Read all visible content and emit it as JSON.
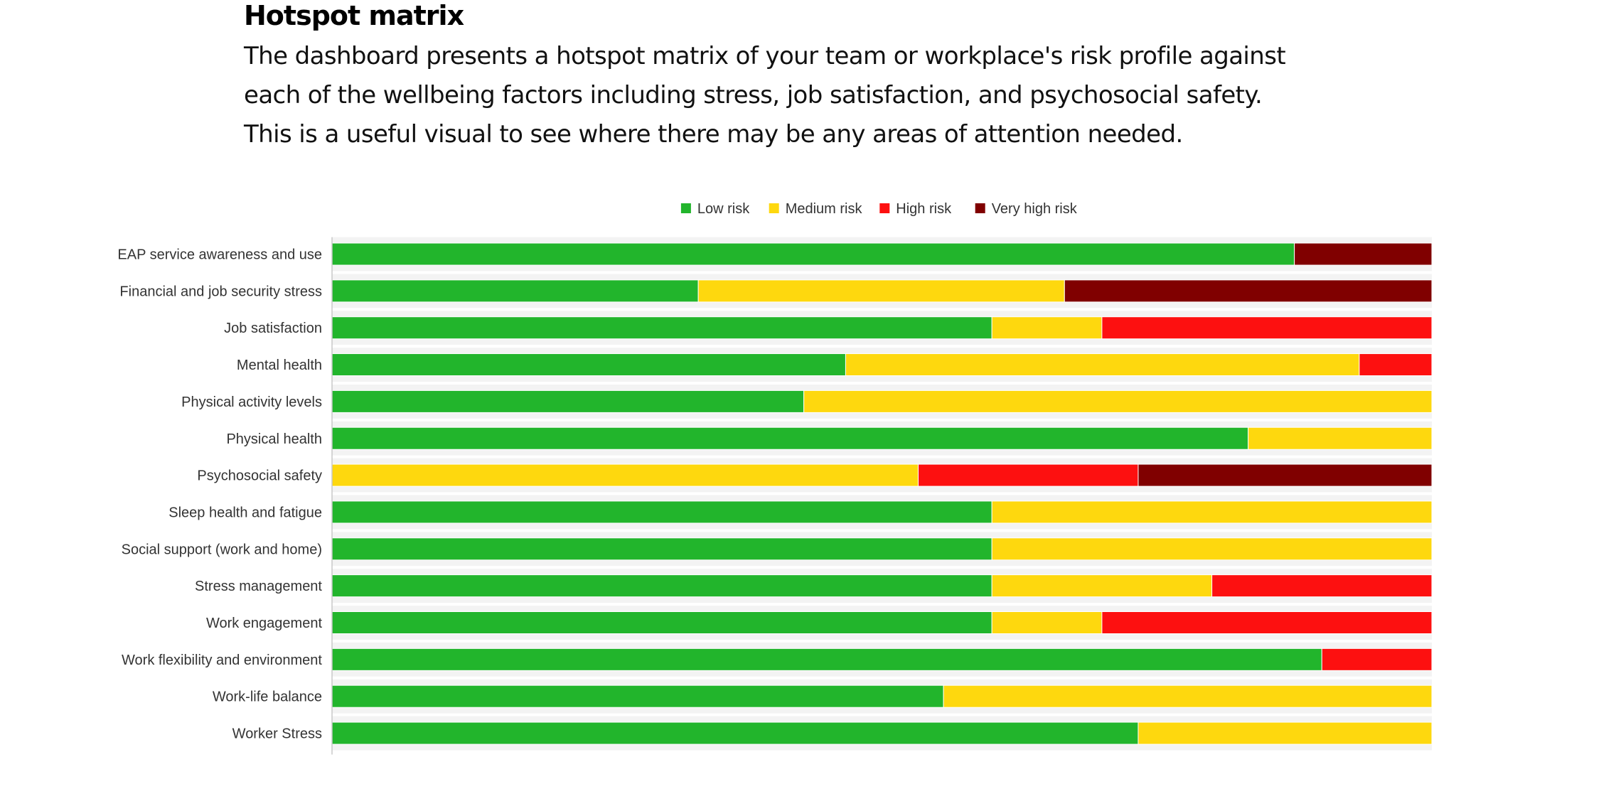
{
  "page": {
    "title": "Hotspot matrix",
    "description": "The dashboard presents a hotspot matrix of your team or workplace's risk profile against each of the wellbeing factors including stress, job satisfaction, and psychosocial safety. This is a useful visual to see where there may be any areas of attention needed."
  },
  "chart_data": {
    "type": "bar",
    "orientation": "horizontal",
    "stacked": true,
    "normalized_percent": true,
    "title": "",
    "xlabel": "",
    "ylabel": "",
    "xlim": [
      0,
      100
    ],
    "grid": false,
    "legend_position": "top-center",
    "categories": [
      "EAP service awareness and use",
      "Financial and job security stress",
      "Job satisfaction",
      "Mental health",
      "Physical activity levels",
      "Physical health",
      "Psychosocial safety",
      "Sleep health and fatigue",
      "Social support (work and home)",
      "Stress management",
      "Work engagement",
      "Work flexibility and environment",
      "Work-life balance",
      "Worker Stress"
    ],
    "series": [
      {
        "name": "Low risk",
        "color": "#22b52c",
        "values": [
          87.5,
          33.3,
          60,
          46.7,
          42.9,
          83.3,
          0,
          60,
          60,
          60,
          60,
          90,
          55.6,
          73.3
        ]
      },
      {
        "name": "Medium risk",
        "color": "#fed80e",
        "values": [
          0,
          33.3,
          10,
          46.7,
          57.1,
          16.7,
          53.3,
          40,
          40,
          20,
          10,
          0,
          44.4,
          26.7
        ]
      },
      {
        "name": "High risk",
        "color": "#fd1010",
        "values": [
          0,
          0,
          30,
          6.6,
          0,
          0,
          20,
          0,
          0,
          20,
          30,
          10,
          0,
          0
        ]
      },
      {
        "name": "Very high risk",
        "color": "#800000",
        "values": [
          12.5,
          33.4,
          0,
          0,
          0,
          0,
          26.7,
          0,
          0,
          0,
          0,
          0,
          0,
          0
        ]
      }
    ]
  }
}
